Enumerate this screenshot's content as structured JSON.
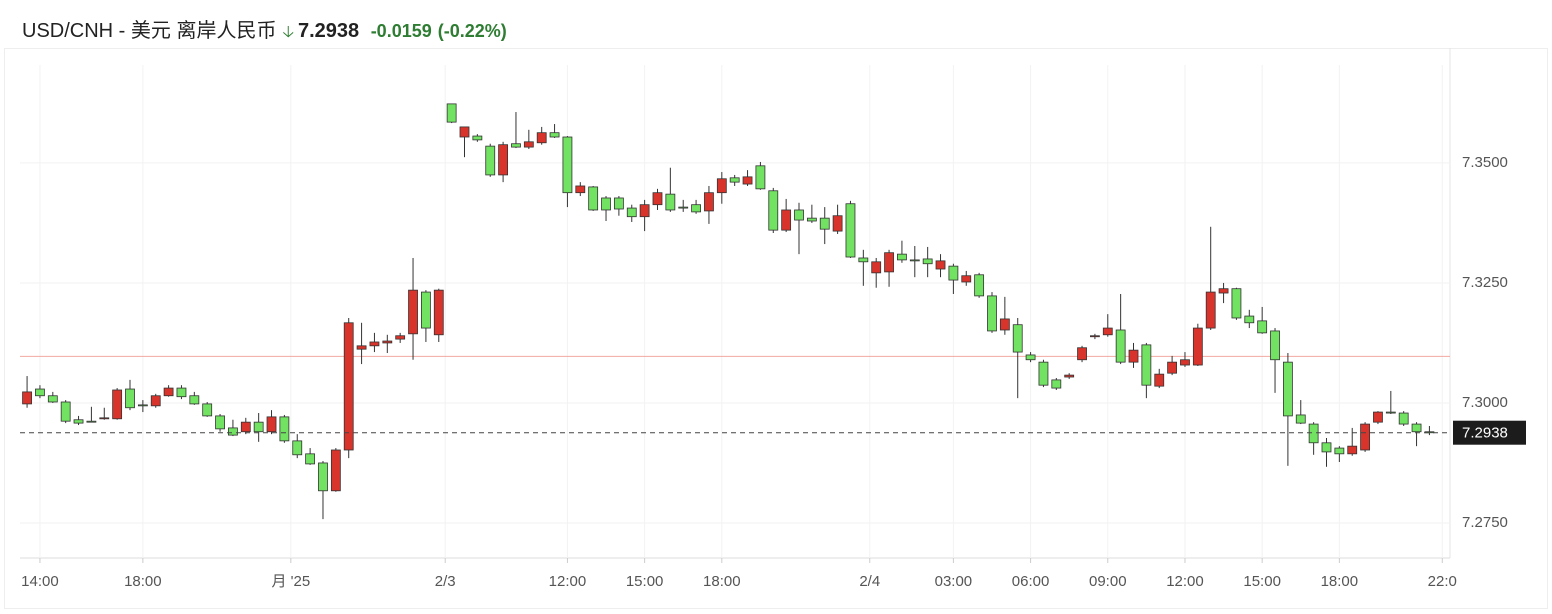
{
  "chart_data": {
    "type": "candlestick",
    "title": "USD/CNH - 美元 离岸人民币",
    "last_price": 7.2938,
    "change": -0.0159,
    "change_percent": "(-0.22%)",
    "previous_close": 7.3097,
    "up_color": "#d9342b",
    "down_color": "#72e262",
    "line_color": "#f2a9a2",
    "grid": true,
    "xlim": [
      -0.55,
      110.6
    ],
    "xticks": [
      {
        "value": 1,
        "label": "14:00"
      },
      {
        "value": 9,
        "label": "18:00"
      },
      {
        "value": 20.5,
        "label": "月 '25"
      },
      {
        "value": 32.5,
        "label": "2/3"
      },
      {
        "value": 42,
        "label": "12:00"
      },
      {
        "value": 48,
        "label": "15:00"
      },
      {
        "value": 54,
        "label": "18:00"
      },
      {
        "value": 65.5,
        "label": "2/4"
      },
      {
        "value": 72,
        "label": "03:00"
      },
      {
        "value": 78,
        "label": "06:00"
      },
      {
        "value": 84,
        "label": "09:00"
      },
      {
        "value": 90,
        "label": "12:00"
      },
      {
        "value": 96,
        "label": "15:00"
      },
      {
        "value": 102,
        "label": "18:00"
      },
      {
        "value": 110,
        "label": "22:0"
      }
    ],
    "ylim": [
      7.2677,
      7.3704
    ],
    "yticks": [
      {
        "value": 7.275,
        "label": "7.2750"
      },
      {
        "value": 7.3,
        "label": "7.3000"
      },
      {
        "value": 7.325,
        "label": "7.3250"
      },
      {
        "value": 7.35,
        "label": "7.3500"
      }
    ],
    "open": [
      7.2998,
      7.3029,
      7.3015,
      7.3002,
      7.2965,
      7.2962,
      7.2967,
      7.2967,
      7.3029,
      7.2996,
      7.2994,
      7.3015,
      7.3031,
      7.3015,
      7.2998,
      7.2973,
      7.2948,
      7.294,
      7.296,
      7.294,
      7.2971,
      7.2921,
      7.2894,
      7.2875,
      7.2817,
      7.2902,
      7.3112,
      7.3119,
      7.3125,
      7.3133,
      7.3144,
      7.3231,
      7.3142,
      7.3623,
      7.3554,
      7.3556,
      7.3535,
      7.3475,
      7.354,
      7.3533,
      7.3542,
      7.3563,
      7.3554,
      7.3438,
      7.345,
      7.3427,
      7.3427,
      7.3406,
      7.3388,
      7.3413,
      7.3435,
      7.3408,
      7.3413,
      7.34,
      7.3438,
      7.3469,
      7.3456,
      7.3494,
      7.3442,
      7.336,
      7.3402,
      7.3385,
      7.3385,
      7.3358,
      7.3415,
      7.3302,
      7.3271,
      7.3273,
      7.331,
      7.3298,
      7.33,
      7.3279,
      7.3285,
      7.3252,
      7.3267,
      7.3223,
      7.3152,
      7.3163,
      7.31,
      7.3085,
      7.3048,
      7.3054,
      7.309,
      7.3138,
      7.3142,
      7.3152,
      7.3085,
      7.3121,
      7.3035,
      7.3062,
      7.3079,
      7.3079,
      7.3156,
      7.3229,
      7.3238,
      7.3181,
      7.3171,
      7.315,
      7.3085,
      7.2975,
      7.2956,
      7.2917,
      7.2906,
      7.2894,
      7.2902,
      7.296,
      7.2981,
      7.2979,
      7.2956,
      7.294
    ],
    "high": [
      7.3056,
      7.3037,
      7.3023,
      7.3006,
      7.2973,
      7.2992,
      7.299,
      7.3031,
      7.3048,
      7.3006,
      7.3019,
      7.3037,
      7.3037,
      7.3023,
      7.3002,
      7.2977,
      7.2965,
      7.2969,
      7.2979,
      7.2985,
      7.2975,
      7.2935,
      7.2906,
      7.2879,
      7.2906,
      7.3177,
      7.3167,
      7.3146,
      7.3142,
      7.3146,
      7.3302,
      7.3235,
      7.3238,
      7.3623,
      7.3575,
      7.356,
      7.354,
      7.3544,
      7.3606,
      7.3569,
      7.3575,
      7.3581,
      7.3556,
      7.346,
      7.3452,
      7.3431,
      7.3431,
      7.3413,
      7.3423,
      7.3446,
      7.349,
      7.3423,
      7.3423,
      7.3452,
      7.3481,
      7.3475,
      7.3485,
      7.3502,
      7.3448,
      7.3425,
      7.3417,
      7.3413,
      7.3408,
      7.3413,
      7.3421,
      7.3319,
      7.3302,
      7.3319,
      7.3338,
      7.3327,
      7.3325,
      7.331,
      7.329,
      7.3275,
      7.3271,
      7.3231,
      7.3221,
      7.3177,
      7.3106,
      7.309,
      7.3052,
      7.3062,
      7.3119,
      7.3144,
      7.3185,
      7.3227,
      7.3125,
      7.3125,
      7.3071,
      7.3098,
      7.3106,
      7.3165,
      7.3367,
      7.325,
      7.324,
      7.3194,
      7.32,
      7.3156,
      7.3104,
      7.3006,
      7.296,
      7.2927,
      7.291,
      7.2948,
      7.296,
      7.2983,
      7.3025,
      7.2983,
      7.296,
      7.2952
    ],
    "low": [
      7.299,
      7.301,
      7.3,
      7.2958,
      7.2954,
      7.296,
      7.2965,
      7.2965,
      7.2985,
      7.2981,
      7.299,
      7.3013,
      7.3008,
      7.2996,
      7.2971,
      7.294,
      7.2931,
      7.2935,
      7.2919,
      7.2935,
      7.2917,
      7.2885,
      7.2871,
      7.2758,
      7.2815,
      7.2885,
      7.3081,
      7.3106,
      7.3104,
      7.3125,
      7.309,
      7.3127,
      7.3127,
      7.3583,
      7.3512,
      7.3544,
      7.3471,
      7.346,
      7.3531,
      7.3529,
      7.3538,
      7.3552,
      7.3408,
      7.3431,
      7.34,
      7.3379,
      7.339,
      7.3377,
      7.3358,
      7.3402,
      7.3398,
      7.3398,
      7.3394,
      7.3373,
      7.3415,
      7.3452,
      7.3452,
      7.3444,
      7.3354,
      7.3356,
      7.331,
      7.3375,
      7.3331,
      7.3352,
      7.3302,
      7.3244,
      7.324,
      7.3242,
      7.3292,
      7.3262,
      7.3262,
      7.3262,
      7.3227,
      7.3244,
      7.3219,
      7.3146,
      7.3142,
      7.301,
      7.3085,
      7.3033,
      7.3027,
      7.305,
      7.3085,
      7.3133,
      7.3138,
      7.3081,
      7.3073,
      7.301,
      7.3031,
      7.3058,
      7.3075,
      7.3077,
      7.3152,
      7.3208,
      7.3173,
      7.3156,
      7.3144,
      7.3021,
      7.2869,
      7.2956,
      7.2892,
      7.2867,
      7.2877,
      7.289,
      7.2898,
      7.2956,
      7.2977,
      7.2952,
      7.291,
      7.2933
    ],
    "close": [
      7.3023,
      7.3015,
      7.3002,
      7.2962,
      7.2958,
      7.296,
      7.2969,
      7.3027,
      7.299,
      7.2994,
      7.3015,
      7.3031,
      7.3013,
      7.2998,
      7.2973,
      7.2946,
      7.2933,
      7.296,
      7.294,
      7.2971,
      7.2921,
      7.2892,
      7.2873,
      7.2817,
      7.2902,
      7.3167,
      7.3119,
      7.3127,
      7.3129,
      7.314,
      7.3235,
      7.3156,
      7.3235,
      7.3585,
      7.3575,
      7.3548,
      7.3475,
      7.3538,
      7.3533,
      7.3544,
      7.3563,
      7.3554,
      7.3438,
      7.3452,
      7.3402,
      7.3402,
      7.3404,
      7.3388,
      7.3413,
      7.3438,
      7.3402,
      7.3406,
      7.3398,
      7.3438,
      7.3467,
      7.346,
      7.3471,
      7.3446,
      7.336,
      7.3402,
      7.3381,
      7.3379,
      7.3362,
      7.339,
      7.3304,
      7.3294,
      7.3294,
      7.3313,
      7.3298,
      7.3296,
      7.329,
      7.3296,
      7.3256,
      7.3265,
      7.3223,
      7.315,
      7.3175,
      7.3106,
      7.309,
      7.3037,
      7.3031,
      7.3058,
      7.3115,
      7.314,
      7.3156,
      7.3085,
      7.311,
      7.3037,
      7.306,
      7.3085,
      7.309,
      7.3156,
      7.3231,
      7.3238,
      7.3177,
      7.3167,
      7.3146,
      7.309,
      7.2973,
      7.2958,
      7.2917,
      7.2898,
      7.2894,
      7.291,
      7.2956,
      7.2981,
      7.2979,
      7.2956,
      7.294,
      7.2938
    ]
  }
}
